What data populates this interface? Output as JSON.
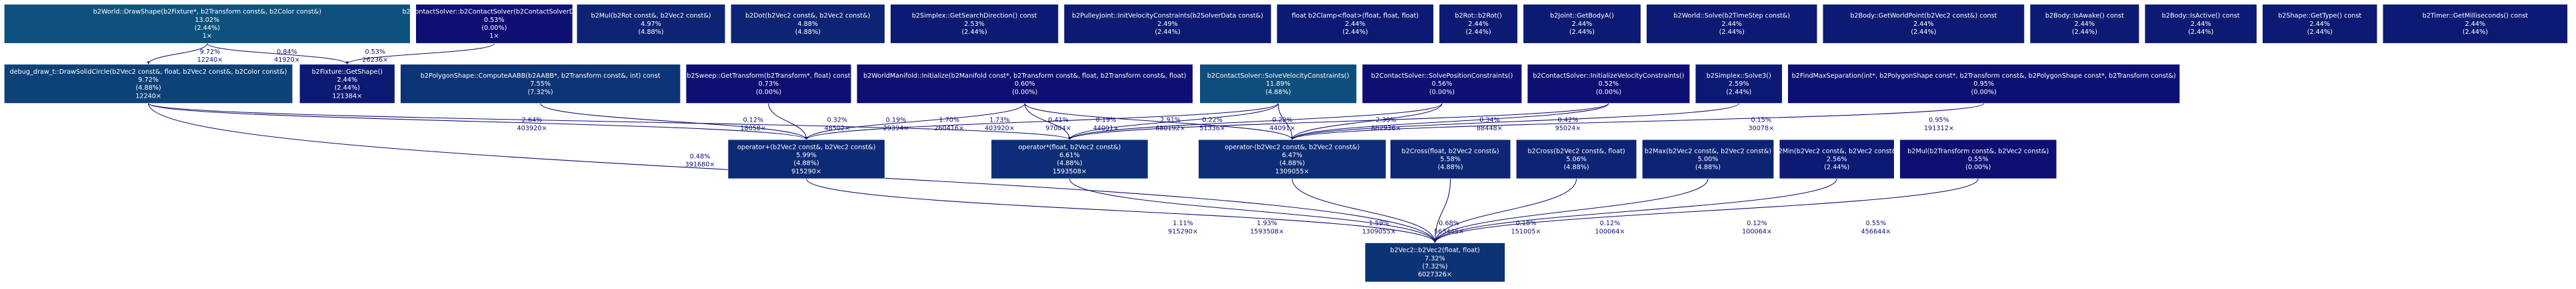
{
  "nodes": [
    {
      "name": "b2World::DrawShape(b2Fixture*, b2Transform const&, b2Color const&)",
      "total": "13.02%",
      "self": "(2.44%)",
      "calls": "1×"
    },
    {
      "name": "b2ContactSolver::b2ContactSolver(b2ContactSolverDef*)",
      "total": "0.53%",
      "self": "(0.00%)",
      "calls": "1×"
    },
    {
      "name": "b2Mul(b2Rot const&, b2Vec2 const&)",
      "total": "4.97%",
      "self": "(4.88%)"
    },
    {
      "name": "b2Dot(b2Vec2 const&, b2Vec2 const&)",
      "total": "4.88%",
      "self": "(4.88%)"
    },
    {
      "name": "b2Simplex::GetSearchDirection() const",
      "total": "2.53%",
      "self": "(2.44%)"
    },
    {
      "name": "b2PulleyJoint::InitVelocityConstraints(b2SolverData const&)",
      "total": "2.49%",
      "self": "(2.44%)"
    },
    {
      "name": "float b2Clamp<float>(float, float, float)",
      "total": "2.44%",
      "self": "(2.44%)"
    },
    {
      "name": "b2Rot::b2Rot()",
      "total": "2.44%",
      "self": "(2.44%)"
    },
    {
      "name": "b2Joint::GetBodyA()",
      "total": "2.44%",
      "self": "(2.44%)"
    },
    {
      "name": "b2World::Solve(b2TimeStep const&)",
      "total": "2.44%",
      "self": "(2.44%)"
    },
    {
      "name": "b2Body::GetWorldPoint(b2Vec2 const&) const",
      "total": "2.44%",
      "self": "(2.44%)"
    },
    {
      "name": "b2Body::IsAwake() const",
      "total": "2.44%",
      "self": "(2.44%)"
    },
    {
      "name": "b2Body::IsActive() const",
      "total": "2.44%",
      "self": "(2.44%)"
    },
    {
      "name": "b2Shape::GetType() const",
      "total": "2.44%",
      "self": "(2.44%)"
    },
    {
      "name": "b2Timer::GetMilliseconds() const",
      "total": "2.44%",
      "self": "(2.44%)"
    },
    {
      "name": "debug_draw_t::DrawSolidCircle(b2Vec2 const&, float, b2Vec2 const&, b2Color const&)",
      "total": "9.72%",
      "self": "(4.88%)",
      "calls": "12240×"
    },
    {
      "name": "b2Fixture::GetShape()",
      "total": "2.44%",
      "self": "(2.44%)",
      "calls": "121384×"
    },
    {
      "name": "b2PolygonShape::ComputeAABB(b2AABB*, b2Transform const&, int) const",
      "total": "7.55%",
      "self": "(7.32%)"
    },
    {
      "name": "b2Sweep::GetTransform(b2Transform*, float) const",
      "total": "0.73%",
      "self": "(0.00%)"
    },
    {
      "name": "b2WorldManifold::Initialize(b2Manifold const*, b2Transform const&, float, b2Transform const&, float)",
      "total": "0.60%",
      "self": "(0.00%)"
    },
    {
      "name": "b2ContactSolver::SolveVelocityConstraints()",
      "total": "11.89%",
      "self": "(4.88%)"
    },
    {
      "name": "b2ContactSolver::SolvePositionConstraints()",
      "total": "0.56%",
      "self": "(0.00%)"
    },
    {
      "name": "b2ContactSolver::InitializeVelocityConstraints()",
      "total": "0.52%",
      "self": "(0.00%)"
    },
    {
      "name": "b2Simplex::Solve3()",
      "total": "2.59%",
      "self": "(2.44%)"
    },
    {
      "name": "b2FindMaxSeparation(int*, b2PolygonShape const*, b2Transform const&, b2PolygonShape const*, b2Transform const&)",
      "total": "0.95%",
      "self": "(0.00%)"
    },
    {
      "name": "operator+(b2Vec2 const&, b2Vec2 const&)",
      "total": "5.99%",
      "self": "(4.88%)",
      "calls": "915290×"
    },
    {
      "name": "operator*(float, b2Vec2 const&)",
      "total": "6.61%",
      "self": "(4.88%)",
      "calls": "1593508×"
    },
    {
      "name": "operator-(b2Vec2 const&, b2Vec2 const&)",
      "total": "6.47%",
      "self": "(4.88%)",
      "calls": "1309055×"
    },
    {
      "name": "b2Cross(float, b2Vec2 const&)",
      "total": "5.58%",
      "self": "(4.88%)"
    },
    {
      "name": "b2Cross(b2Vec2 const&, float)",
      "total": "5.06%",
      "self": "(4.88%)"
    },
    {
      "name": "b2Max(b2Vec2 const&, b2Vec2 const&)",
      "total": "5.00%",
      "self": "(4.88%)"
    },
    {
      "name": "b2Min(b2Vec2 const&, b2Vec2 const&)",
      "total": "2.56%",
      "self": "(2.44%)"
    },
    {
      "name": "b2Mul(b2Transform const&, b2Vec2 const&)",
      "total": "0.55%",
      "self": "(0.00%)"
    },
    {
      "name": "b2Vec2::b2Vec2(float, float)",
      "total": "7.32%",
      "self": "(7.32%)",
      "calls": "6027326×"
    }
  ],
  "edges": [
    {
      "percent": "9.72%",
      "calls": "12240×"
    },
    {
      "percent": "0.84%",
      "calls": "41920×"
    },
    {
      "percent": "0.53%",
      "calls": "26236×"
    },
    {
      "percent": "2.64%",
      "calls": "403920×"
    },
    {
      "percent": "0.48%",
      "calls": "391680×"
    },
    {
      "percent": "0.12%",
      "calls": "18058×"
    },
    {
      "percent": "0.32%",
      "calls": "48502×"
    },
    {
      "percent": "0.19%",
      "calls": "29394×"
    },
    {
      "percent": "1.70%",
      "calls": "260416×"
    },
    {
      "percent": "1.73%",
      "calls": "403920×"
    },
    {
      "percent": "0.41%",
      "calls": "97004×"
    },
    {
      "percent": "0.19%",
      "calls": "44091×"
    },
    {
      "percent": "2.91%",
      "calls": "680192×"
    },
    {
      "percent": "0.22%",
      "calls": "51336×"
    },
    {
      "percent": "0.22%",
      "calls": "44091×"
    },
    {
      "percent": "2.39%",
      "calls": "882936×"
    },
    {
      "percent": "0.34%",
      "calls": "88448×"
    },
    {
      "percent": "0.42%",
      "calls": "95024×"
    },
    {
      "percent": "0.15%",
      "calls": "30078×"
    },
    {
      "percent": "0.95%",
      "calls": "191312×"
    },
    {
      "percent": "1.11%",
      "calls": "915290×"
    },
    {
      "percent": "1.93%",
      "calls": "1593508×"
    },
    {
      "percent": "1.59%",
      "calls": "1309055×"
    },
    {
      "percent": "0.68%",
      "calls": "563445×"
    },
    {
      "percent": "0.18%",
      "calls": "151005×"
    },
    {
      "percent": "0.12%",
      "calls": "100064×"
    },
    {
      "percent": "0.12%",
      "calls": "100064×"
    },
    {
      "percent": "0.55%",
      "calls": "456644×"
    }
  ]
}
